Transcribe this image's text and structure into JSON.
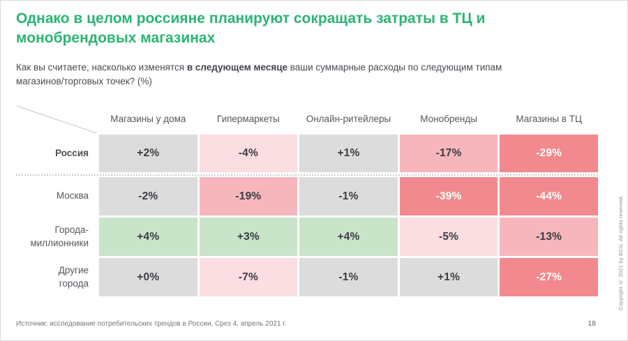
{
  "slide": {
    "title": "Однако в целом россияне планируют сокращать затраты в ТЦ и\nмонобрендовых магазинах",
    "subtitle": {
      "prefix": "Как вы считаете, насколько изменятся ",
      "bold": "в следующем месяце",
      "suffix": " ваши суммарные расходы по следующим типам\nмагазинов/торговых точек? (%)"
    },
    "footer": {
      "source": "Источник: исследование потребительских трендов в России, Срез 4, апрель 2021 г.",
      "page_number": "18",
      "copyright": "Copyright © 2021 by BCG. All rights reserved."
    }
  },
  "chart_data": {
    "type": "table",
    "columns": [
      "Магазины у дома",
      "Гипермаркеты",
      "Онлайн-ритейлеры",
      "Монобренды",
      "Магазины в ТЦ"
    ],
    "rows": [
      {
        "label": "Россия",
        "bold": true,
        "values": [
          "+2%",
          "-4%",
          "+1%",
          "-17%",
          "-29%"
        ],
        "values_pct": [
          2,
          -4,
          1,
          -17,
          -29
        ],
        "tones": [
          "gray",
          "pink_light",
          "gray",
          "pink_medium",
          "red"
        ]
      },
      {
        "label": "Москва",
        "bold": false,
        "values": [
          "-2%",
          "-19%",
          "-1%",
          "-39%",
          "-44%"
        ],
        "values_pct": [
          -2,
          -19,
          -1,
          -39,
          -44
        ],
        "tones": [
          "gray",
          "pink_medium",
          "gray",
          "red",
          "red"
        ]
      },
      {
        "label": "Города-\nмиллионники",
        "bold": false,
        "values": [
          "+4%",
          "+3%",
          "+4%",
          "-5%",
          "-13%"
        ],
        "values_pct": [
          4,
          3,
          4,
          -5,
          -13
        ],
        "tones": [
          "green",
          "green",
          "green",
          "pink_light",
          "pink_medium"
        ]
      },
      {
        "label": "Другие\nгорода",
        "bold": false,
        "values": [
          "+0%",
          "-7%",
          "-1%",
          "+1%",
          "-27%"
        ],
        "values_pct": [
          0,
          -7,
          -1,
          1,
          -27
        ],
        "tones": [
          "gray",
          "pink_light",
          "gray",
          "gray",
          "red"
        ]
      }
    ],
    "colors": {
      "gray": "#dcdcdc",
      "green": "#c8e4c9",
      "pink_light": "#fbdee1",
      "pink_medium": "#f6b6bb",
      "red": "#f1898e",
      "value_text_dark": "#3c3c45",
      "value_text_light": "#ffffff",
      "accent_green": "#2ab573"
    }
  }
}
